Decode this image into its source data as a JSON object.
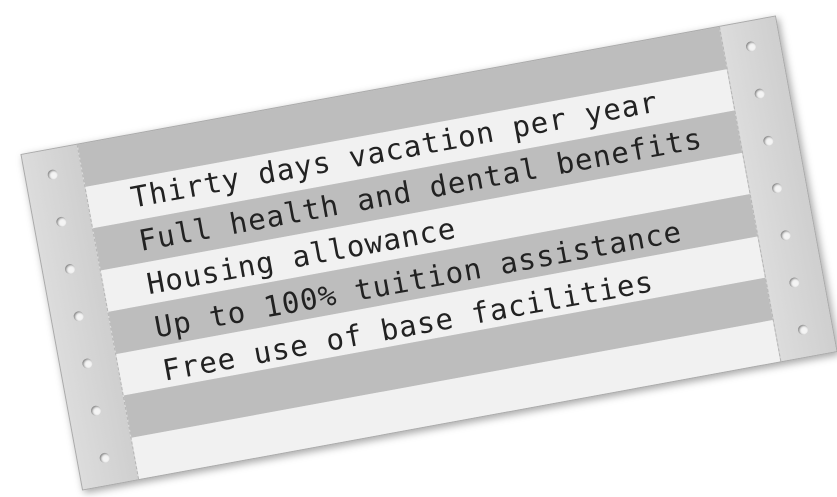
{
  "printout": {
    "lines": [
      "Thirty days vacation per year",
      "Full health and dental benefits",
      "Housing allowance",
      "Up to 100% tuition assistance",
      "Free use of base facilities"
    ]
  }
}
